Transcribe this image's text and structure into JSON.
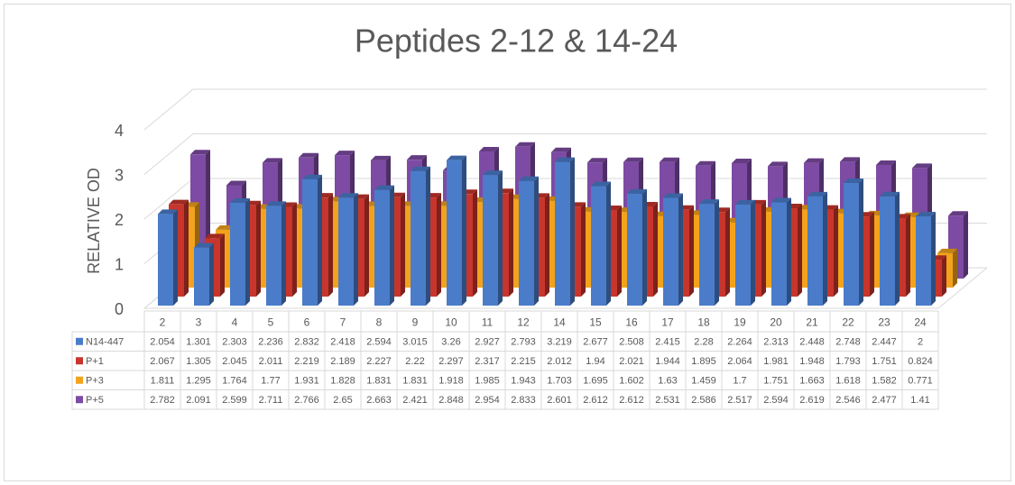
{
  "chart_data": {
    "type": "bar3d",
    "title": "Peptides 2-12 & 14-24",
    "y_label": "RELATIVE OD",
    "categories": [
      "2",
      "3",
      "4",
      "5",
      "6",
      "7",
      "8",
      "9",
      "10",
      "11",
      "12",
      "14",
      "15",
      "16",
      "17",
      "18",
      "19",
      "20",
      "21",
      "22",
      "23",
      "24"
    ],
    "series": [
      {
        "name": "N14-447",
        "color": "#4a7cc9",
        "values": [
          2.054,
          1.301,
          2.303,
          2.236,
          2.832,
          2.418,
          2.594,
          3.015,
          3.26,
          2.927,
          2.793,
          3.219,
          2.677,
          2.508,
          2.415,
          2.28,
          2.264,
          2.313,
          2.448,
          2.748,
          2.447,
          2
        ]
      },
      {
        "name": "P+1",
        "color": "#c8352c",
        "values": [
          2.067,
          1.305,
          2.045,
          2.011,
          2.219,
          2.189,
          2.227,
          2.22,
          2.297,
          2.317,
          2.215,
          2.012,
          1.94,
          2.021,
          1.944,
          1.895,
          2.064,
          1.981,
          1.948,
          1.793,
          1.751,
          0.824
        ]
      },
      {
        "name": "P+3",
        "color": "#f2a31b",
        "values": [
          1.811,
          1.295,
          1.764,
          1.77,
          1.931,
          1.828,
          1.831,
          1.831,
          1.918,
          1.985,
          1.943,
          1.703,
          1.695,
          1.602,
          1.63,
          1.459,
          1.7,
          1.751,
          1.663,
          1.618,
          1.582,
          0.771
        ]
      },
      {
        "name": "P+5",
        "color": "#7d4ba3",
        "values": [
          2.782,
          2.091,
          2.599,
          2.711,
          2.766,
          2.65,
          2.663,
          2.421,
          2.848,
          2.954,
          2.833,
          2.601,
          2.612,
          2.612,
          2.531,
          2.586,
          2.517,
          2.594,
          2.619,
          2.546,
          2.477,
          1.41
        ]
      }
    ],
    "ylim": [
      0,
      4
    ],
    "yticks": [
      0,
      1,
      2,
      3,
      4
    ],
    "grid": true
  }
}
